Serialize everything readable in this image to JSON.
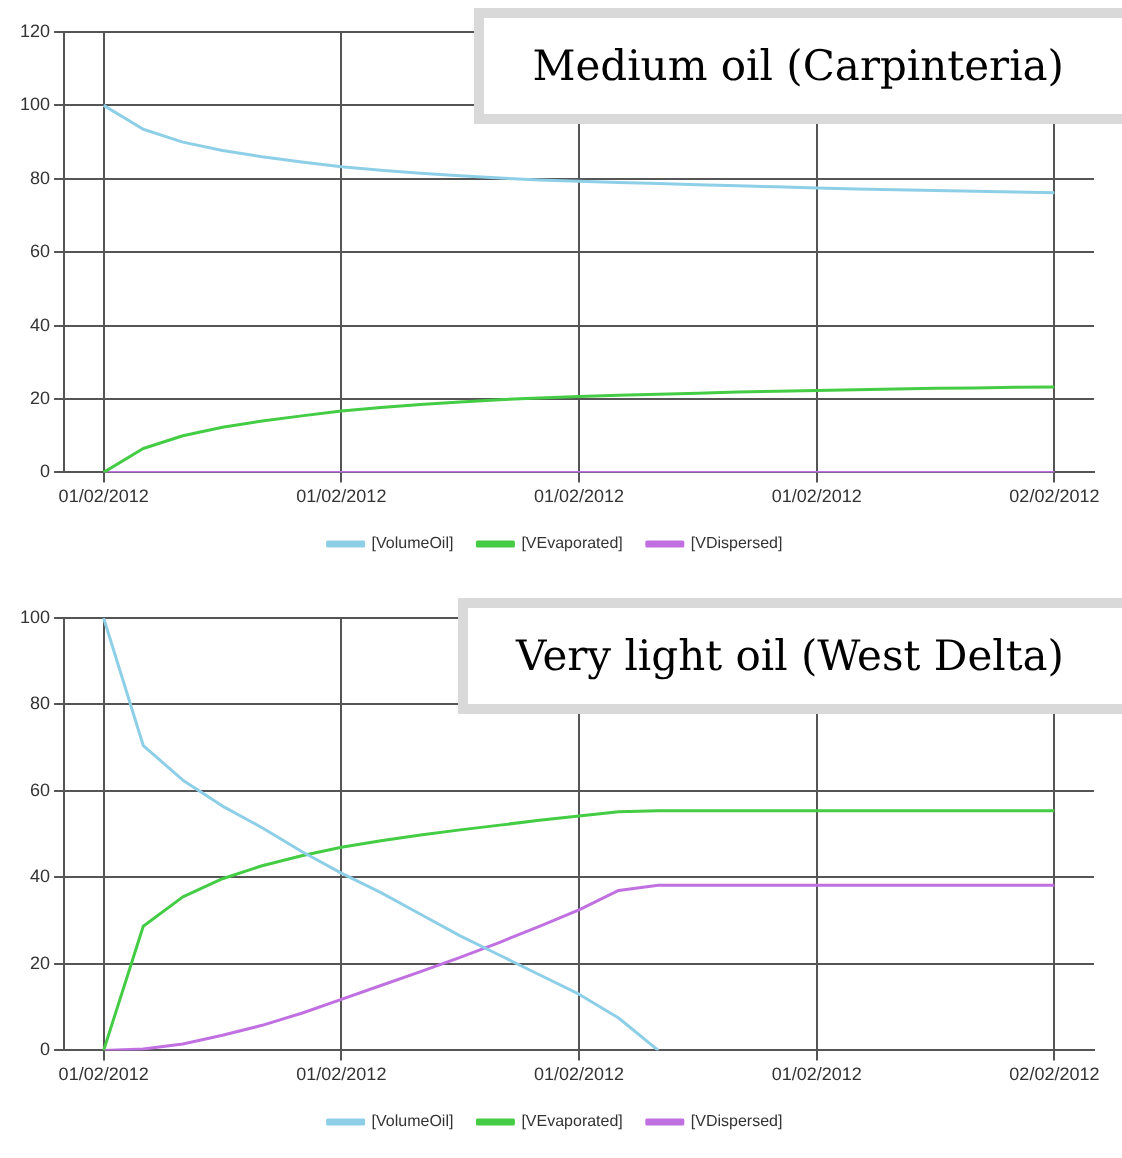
{
  "chart_data": [
    {
      "type": "line",
      "title": "Medium oil (Carpinteria)",
      "categories": [
        "01/02/2012",
        null,
        null,
        null,
        null,
        null,
        "01/02/2012",
        null,
        null,
        null,
        null,
        null,
        "01/02/2012",
        null,
        null,
        null,
        null,
        null,
        "01/02/2012",
        null,
        null,
        null,
        null,
        null,
        "02/02/2012"
      ],
      "series": [
        {
          "name": "[VolumeOil]",
          "color": "#8ecfe8",
          "values": [
            100,
            93.5,
            90,
            87.7,
            86,
            84.6,
            83.3,
            82.3,
            81.5,
            80.8,
            80.2,
            79.7,
            79.3,
            79,
            78.7,
            78.4,
            78.1,
            77.8,
            77.5,
            77.2,
            77,
            76.8,
            76.6,
            76.4,
            76.2
          ]
        },
        {
          "name": "[VEvaporated]",
          "color": "#44cc44",
          "values": [
            0,
            6.5,
            10,
            12.3,
            14,
            15.4,
            16.7,
            17.7,
            18.5,
            19.2,
            19.8,
            20.3,
            20.7,
            21,
            21.3,
            21.6,
            21.9,
            22.1,
            22.3,
            22.5,
            22.7,
            22.9,
            23,
            23.2,
            23.3
          ]
        },
        {
          "name": "[VDispersed]",
          "color": "#c070e0",
          "values": [
            0,
            0,
            0,
            0,
            0,
            0,
            0,
            0,
            0,
            0,
            0,
            0,
            0,
            0,
            0,
            0,
            0,
            0,
            0,
            0,
            0,
            0,
            0,
            0,
            0
          ]
        }
      ],
      "ylim": [
        0,
        120
      ],
      "yticks": [
        0,
        20,
        40,
        60,
        80,
        100,
        120
      ],
      "grid": true,
      "legend": "bottom",
      "marker": "none",
      "line_style": "solid"
    },
    {
      "type": "line",
      "title": "Very light oil (West Delta)",
      "categories": [
        "01/02/2012",
        null,
        null,
        null,
        null,
        null,
        "01/02/2012",
        null,
        null,
        null,
        null,
        null,
        "01/02/2012",
        null,
        null,
        null,
        null,
        null,
        "01/02/2012",
        null,
        null,
        null,
        null,
        null,
        "02/02/2012"
      ],
      "series": [
        {
          "name": "[VolumeOil]",
          "color": "#8ecfe8",
          "values": [
            100,
            70.5,
            62.5,
            56.5,
            51.5,
            46,
            41,
            36.5,
            31.5,
            26.5,
            22,
            17.5,
            13,
            7.5,
            0,
            null,
            null,
            null,
            null,
            null,
            null,
            null,
            null,
            null,
            null
          ]
        },
        {
          "name": "[VEvaporated]",
          "color": "#44cc44",
          "values": [
            0,
            28.7,
            35.5,
            39.7,
            42.7,
            45,
            47,
            48.5,
            49.8,
            51,
            52.1,
            53.2,
            54.2,
            55.2,
            55.4,
            55.4,
            55.4,
            55.4,
            55.4,
            55.4,
            55.4,
            55.4,
            55.4,
            55.4,
            55.4
          ]
        },
        {
          "name": "[VDispersed]",
          "color": "#c070e0",
          "values": [
            0,
            0.3,
            1.5,
            3.5,
            5.8,
            8.6,
            11.8,
            15,
            18.2,
            21.5,
            25,
            28.7,
            32.5,
            37,
            38.2,
            38.2,
            38.2,
            38.2,
            38.2,
            38.2,
            38.2,
            38.2,
            38.2,
            38.2,
            38.2
          ]
        }
      ],
      "ylim": [
        0,
        100
      ],
      "yticks": [
        0,
        20,
        40,
        60,
        80,
        100
      ],
      "grid": true,
      "legend": "bottom",
      "marker": "none",
      "line_style": "solid"
    }
  ]
}
